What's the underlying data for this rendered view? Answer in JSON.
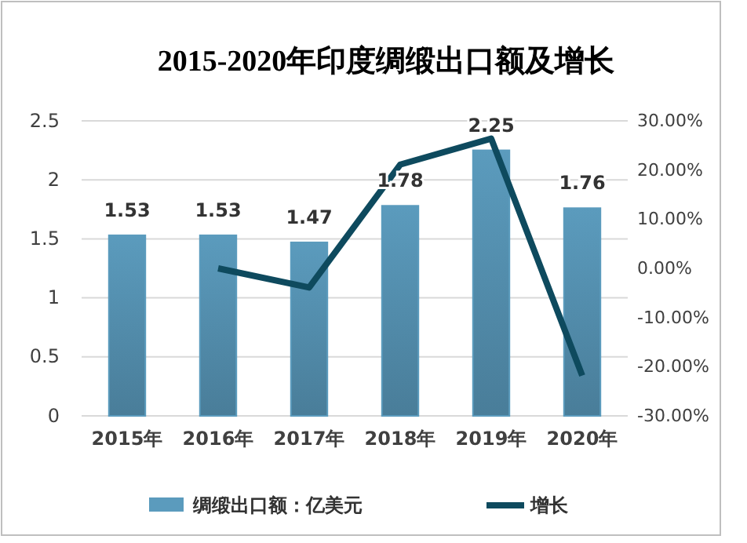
{
  "chart_data": {
    "type": "bar",
    "title": "2015-2020年印度绸缎出口额及增长",
    "categories": [
      "2015年",
      "2016年",
      "2017年",
      "2018年",
      "2019年",
      "2020年"
    ],
    "series": [
      {
        "name": "绸缎出口额：亿美元",
        "color": "#5b9bbd",
        "values": [
          1.53,
          1.53,
          1.47,
          1.78,
          2.25,
          1.76
        ],
        "value_labels": [
          "1.53",
          "1.53",
          "1.47",
          "1.78",
          "2.25",
          "1.76"
        ]
      },
      {
        "name": "增长",
        "type": "line",
        "axis": "y2",
        "color": "#0e4a5e",
        "values": [
          null,
          0,
          -3.9,
          21.1,
          26.4,
          -21.8
        ]
      }
    ],
    "ylim": [
      0,
      2.5
    ],
    "yticks": [
      0,
      0.5,
      1,
      1.5,
      2,
      2.5
    ],
    "y2lim": [
      -30,
      30
    ],
    "y2ticks": [
      {
        "value": -30,
        "label": "-30.00%"
      },
      {
        "value": -20,
        "label": "-20.00%"
      },
      {
        "value": -10,
        "label": "-10.00%"
      },
      {
        "value": 0,
        "label": "0.00%"
      },
      {
        "value": 10,
        "label": "10.00%"
      },
      {
        "value": 20,
        "label": "20.00%"
      },
      {
        "value": 30,
        "label": "30.00%"
      }
    ],
    "grid": "y",
    "legend": "bottom",
    "marker": "none",
    "line_style": "solid"
  }
}
